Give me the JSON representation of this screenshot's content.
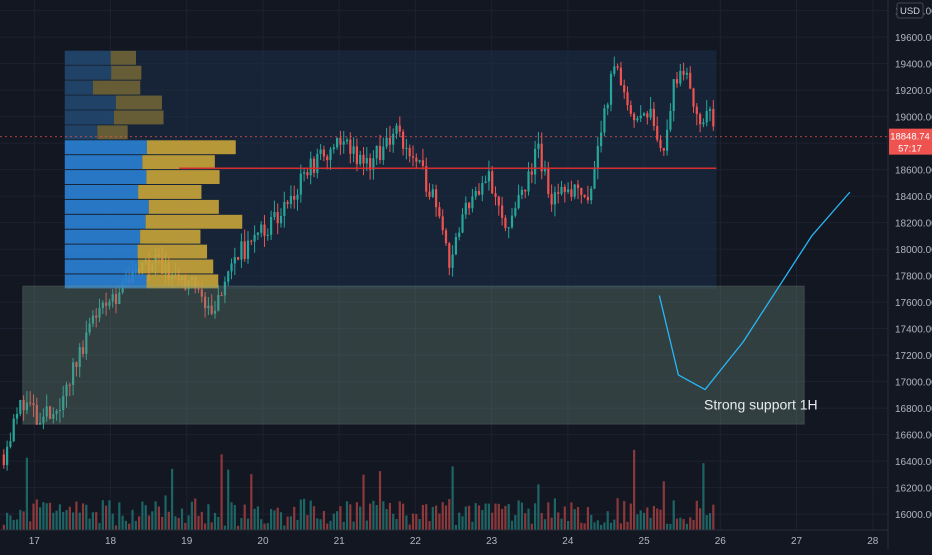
{
  "chart_data": {
    "type": "candlestick",
    "currency": "USD",
    "y_ticks": [
      16000,
      16200,
      16400,
      16600,
      16800,
      17000,
      17200,
      17400,
      17600,
      17800,
      18000,
      18200,
      18400,
      18600,
      18800,
      19000,
      19200,
      19400,
      19600,
      19800
    ],
    "x_ticks": [
      {
        "day": 17,
        "label": "17"
      },
      {
        "day": 18,
        "label": "18"
      },
      {
        "day": 19,
        "label": "19"
      },
      {
        "day": 20,
        "label": "20"
      },
      {
        "day": 21,
        "label": "21"
      },
      {
        "day": 22,
        "label": "22"
      },
      {
        "day": 23,
        "label": "23"
      },
      {
        "day": 24,
        "label": "24"
      },
      {
        "day": 25,
        "label": "25"
      },
      {
        "day": 26,
        "label": "26"
      },
      {
        "day": 27,
        "label": "27"
      },
      {
        "day": 28,
        "label": "28"
      }
    ],
    "x_range": [
      16.55,
      28.2
    ],
    "y_range": [
      15880,
      19880
    ],
    "last_price": "18848.74",
    "countdown": "57:17",
    "grid": true,
    "resistance_level": 18610,
    "support_zone": {
      "low": 16680,
      "high": 17720,
      "from_day": 16.85,
      "to_day": 27.1,
      "label": "Strong support 1H"
    },
    "volume_profile": {
      "from_day": 17.4,
      "to_day": 21.0,
      "low": 17700,
      "high": 19500
    },
    "projection_path": [
      [
        25.2,
        17650
      ],
      [
        25.45,
        17050
      ],
      [
        25.8,
        16940
      ],
      [
        26.3,
        17300
      ],
      [
        27.2,
        18100
      ],
      [
        27.7,
        18430
      ]
    ],
    "series": [
      {
        "day": 16.6,
        "close": 16450
      },
      {
        "day": 16.85,
        "close": 16870
      },
      {
        "day": 17.05,
        "close": 16700
      },
      {
        "day": 17.3,
        "close": 16800
      },
      {
        "day": 17.55,
        "close": 17150
      },
      {
        "day": 17.85,
        "close": 17600
      },
      {
        "day": 18.2,
        "close": 17700
      },
      {
        "day": 18.5,
        "close": 17900
      },
      {
        "day": 18.8,
        "close": 17850
      },
      {
        "day": 19.1,
        "close": 17700
      },
      {
        "day": 19.35,
        "close": 17500
      },
      {
        "day": 19.6,
        "close": 17950
      },
      {
        "day": 19.9,
        "close": 18050
      },
      {
        "day": 20.3,
        "close": 18350
      },
      {
        "day": 20.6,
        "close": 18600
      },
      {
        "day": 21.0,
        "close": 18800
      },
      {
        "day": 21.4,
        "close": 18650
      },
      {
        "day": 21.75,
        "close": 18900
      },
      {
        "day": 22.0,
        "close": 18650
      },
      {
        "day": 22.3,
        "close": 18350
      },
      {
        "day": 22.45,
        "close": 17900
      },
      {
        "day": 22.65,
        "close": 18300
      },
      {
        "day": 22.95,
        "close": 18600
      },
      {
        "day": 23.2,
        "close": 18150
      },
      {
        "day": 23.45,
        "close": 18450
      },
      {
        "day": 23.6,
        "close": 18750
      },
      {
        "day": 23.8,
        "close": 18350
      },
      {
        "day": 24.05,
        "close": 18450
      },
      {
        "day": 24.3,
        "close": 18420
      },
      {
        "day": 24.45,
        "close": 18950
      },
      {
        "day": 24.62,
        "close": 19400
      },
      {
        "day": 24.8,
        "close": 19100
      },
      {
        "day": 24.95,
        "close": 18950
      },
      {
        "day": 25.1,
        "close": 19000
      },
      {
        "day": 25.25,
        "close": 18750
      },
      {
        "day": 25.4,
        "close": 19250
      },
      {
        "day": 25.55,
        "close": 19350
      },
      {
        "day": 25.7,
        "close": 18950
      },
      {
        "day": 25.85,
        "close": 19050
      },
      {
        "day": 25.95,
        "close": 18850
      }
    ]
  }
}
